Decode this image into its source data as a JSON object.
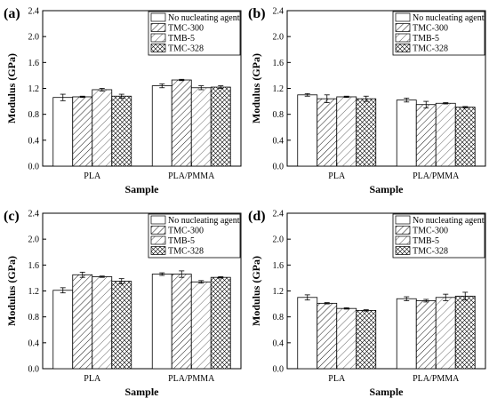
{
  "figure": {
    "series_meta": [
      {
        "name": "No nucleating agent",
        "pattern": "pat-none"
      },
      {
        "name": "TMC-300",
        "pattern": "pat-diag"
      },
      {
        "name": "TMB-5",
        "pattern": "pat-diag2"
      },
      {
        "name": "TMC-328",
        "pattern": "pat-cross"
      }
    ]
  },
  "chart_data": [
    {
      "panel": "(a)",
      "type": "bar",
      "categories": [
        "PLA",
        "PLA/PMMA"
      ],
      "xlabel": "Sample",
      "ylabel": "Modulus (GPa)",
      "ylim": [
        0,
        2.4
      ],
      "yticks": [
        "0.0",
        "0.4",
        "0.8",
        "1.2",
        "1.6",
        "2.0",
        "2.4"
      ],
      "legend": "top-right",
      "series": [
        {
          "name": "No nucleating agent",
          "values": [
            1.06,
            1.24
          ],
          "errors": [
            0.05,
            0.03
          ]
        },
        {
          "name": "TMC-300",
          "values": [
            1.07,
            1.33
          ],
          "errors": [
            0.01,
            0.01
          ]
        },
        {
          "name": "TMB-5",
          "values": [
            1.18,
            1.21
          ],
          "errors": [
            0.02,
            0.03
          ]
        },
        {
          "name": "TMC-328",
          "values": [
            1.08,
            1.22
          ],
          "errors": [
            0.03,
            0.02
          ]
        }
      ]
    },
    {
      "panel": "(b)",
      "type": "bar",
      "categories": [
        "PLA",
        "PLA/PMMA"
      ],
      "xlabel": "Sample",
      "ylabel": "Modulus (GPa)",
      "ylim": [
        0,
        2.4
      ],
      "yticks": [
        "0.0",
        "0.4",
        "0.8",
        "1.2",
        "1.6",
        "2.0",
        "2.4"
      ],
      "legend": "top-right",
      "series": [
        {
          "name": "No nucleating agent",
          "values": [
            1.1,
            1.02
          ],
          "errors": [
            0.02,
            0.03
          ]
        },
        {
          "name": "TMC-300",
          "values": [
            1.04,
            0.95
          ],
          "errors": [
            0.06,
            0.05
          ]
        },
        {
          "name": "TMB-5",
          "values": [
            1.07,
            0.97
          ],
          "errors": [
            0.01,
            0.01
          ]
        },
        {
          "name": "TMC-328",
          "values": [
            1.04,
            0.91
          ],
          "errors": [
            0.04,
            0.01
          ]
        }
      ]
    },
    {
      "panel": "(c)",
      "type": "bar",
      "categories": [
        "PLA",
        "PLA/PMMA"
      ],
      "xlabel": "Sample",
      "ylabel": "Modulus (GPa)",
      "ylim": [
        0,
        2.4
      ],
      "yticks": [
        "0.0",
        "0.4",
        "0.8",
        "1.2",
        "1.6",
        "2.0",
        "2.4"
      ],
      "legend": "top-right",
      "series": [
        {
          "name": "No nucleating agent",
          "values": [
            1.21,
            1.46
          ],
          "errors": [
            0.04,
            0.02
          ]
        },
        {
          "name": "TMC-300",
          "values": [
            1.45,
            1.46
          ],
          "errors": [
            0.04,
            0.05
          ]
        },
        {
          "name": "TMB-5",
          "values": [
            1.42,
            1.34
          ],
          "errors": [
            0.01,
            0.02
          ]
        },
        {
          "name": "TMC-328",
          "values": [
            1.35,
            1.41
          ],
          "errors": [
            0.04,
            0.01
          ]
        }
      ]
    },
    {
      "panel": "(d)",
      "type": "bar",
      "categories": [
        "PLA",
        "PLA/PMMA"
      ],
      "xlabel": "Sample",
      "ylabel": "Modulus (GPa)",
      "ylim": [
        0,
        2.4
      ],
      "yticks": [
        "0.0",
        "0.4",
        "0.8",
        "1.2",
        "1.6",
        "2.0",
        "2.4"
      ],
      "legend": "top-right",
      "series": [
        {
          "name": "No nucleating agent",
          "values": [
            1.1,
            1.08
          ],
          "errors": [
            0.04,
            0.03
          ]
        },
        {
          "name": "TMC-300",
          "values": [
            1.01,
            1.05
          ],
          "errors": [
            0.01,
            0.02
          ]
        },
        {
          "name": "TMB-5",
          "values": [
            0.93,
            1.1
          ],
          "errors": [
            0.01,
            0.05
          ]
        },
        {
          "name": "TMC-328",
          "values": [
            0.9,
            1.12
          ],
          "errors": [
            0.01,
            0.06
          ]
        }
      ]
    }
  ]
}
